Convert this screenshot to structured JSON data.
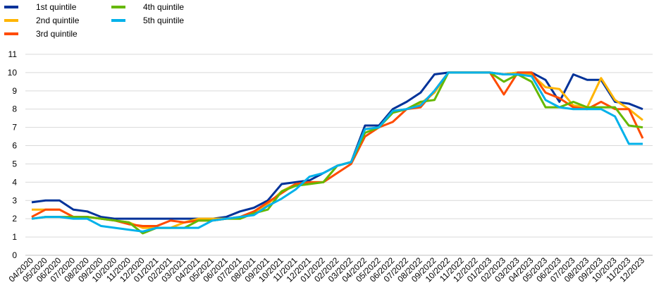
{
  "chart_data": {
    "type": "line",
    "categories": [
      "04/2020",
      "05/2020",
      "06/2020",
      "07/2020",
      "08/2020",
      "09/2020",
      "10/2020",
      "11/2020",
      "12/2020",
      "01/2021",
      "02/2021",
      "03/2021",
      "04/2021",
      "05/2021",
      "06/2021",
      "07/2021",
      "08/2021",
      "09/2021",
      "10/2021",
      "11/2021",
      "12/2021",
      "01/2022",
      "02/2022",
      "03/2022",
      "04/2022",
      "05/2022",
      "06/2022",
      "07/2022",
      "08/2022",
      "09/2022",
      "10/2022",
      "11/2022",
      "12/2022",
      "01/2023",
      "02/2023",
      "03/2023",
      "04/2023",
      "05/2023",
      "06/2023",
      "07/2023",
      "08/2023",
      "09/2023",
      "10/2023",
      "11/2023",
      "12/2023"
    ],
    "series": [
      {
        "name": "1st quintile",
        "color": "#003299",
        "values": [
          2.9,
          3.0,
          3.0,
          2.5,
          2.4,
          2.1,
          2.0,
          2.0,
          2.0,
          2.0,
          2.0,
          2.0,
          2.0,
          2.0,
          2.1,
          2.4,
          2.6,
          3.0,
          3.9,
          4.0,
          4.1,
          4.5,
          4.9,
          5.1,
          7.1,
          7.1,
          8.0,
          8.4,
          8.9,
          9.9,
          10,
          10,
          10,
          10,
          9.9,
          10,
          10,
          9.6,
          8.4,
          9.9,
          9.6,
          9.6,
          8.4,
          8.3,
          8.0
        ]
      },
      {
        "name": "2nd quintile",
        "color": "#ffb400",
        "values": [
          2.5,
          2.5,
          2.5,
          2.1,
          2.1,
          2.0,
          1.9,
          1.8,
          1.5,
          1.5,
          1.5,
          1.8,
          2.0,
          2.0,
          2.0,
          2.0,
          2.3,
          2.8,
          3.5,
          3.9,
          4.0,
          4.0,
          4.9,
          5.1,
          6.9,
          7.0,
          7.9,
          8.0,
          8.3,
          8.9,
          10,
          10,
          10,
          10,
          9.9,
          10,
          9.9,
          9.2,
          9.1,
          8.2,
          8.1,
          9.7,
          8.5,
          8.0,
          7.4
        ]
      },
      {
        "name": "3rd quintile",
        "color": "#ff4b00",
        "values": [
          2.1,
          2.5,
          2.5,
          2.1,
          2.1,
          2.0,
          1.9,
          1.7,
          1.6,
          1.6,
          1.9,
          1.8,
          1.9,
          1.9,
          2.0,
          2.1,
          2.4,
          2.9,
          3.4,
          3.9,
          4.0,
          4.0,
          4.5,
          5.0,
          6.5,
          7.0,
          7.3,
          8.0,
          8.1,
          9.0,
          10,
          10,
          10,
          10,
          8.8,
          10,
          10,
          8.9,
          8.6,
          8.1,
          8.0,
          8.4,
          8.0,
          8.0,
          6.4
        ]
      },
      {
        "name": "4th quintile",
        "color": "#65b800",
        "values": [
          2.0,
          2.1,
          2.1,
          2.1,
          2.1,
          2.0,
          1.9,
          1.8,
          1.2,
          1.5,
          1.5,
          1.5,
          1.9,
          1.9,
          2.0,
          2.0,
          2.3,
          2.5,
          3.5,
          3.8,
          3.9,
          4.0,
          4.9,
          5.1,
          6.7,
          7.0,
          7.8,
          8.0,
          8.4,
          8.5,
          10,
          10,
          10,
          10,
          9.5,
          9.9,
          9.5,
          8.1,
          8.1,
          8.4,
          8.1,
          8.1,
          8.1,
          7.1,
          7.0
        ]
      },
      {
        "name": "5th quintile",
        "color": "#00b1ea",
        "values": [
          2.0,
          2.1,
          2.1,
          2.0,
          2.0,
          1.6,
          1.5,
          1.4,
          1.3,
          1.5,
          1.5,
          1.5,
          1.5,
          1.9,
          2.0,
          2.1,
          2.2,
          2.7,
          3.1,
          3.6,
          4.3,
          4.5,
          4.9,
          5.1,
          6.9,
          7.0,
          7.9,
          8.0,
          8.2,
          9.0,
          10,
          10,
          10,
          10,
          9.9,
          9.9,
          9.8,
          8.5,
          8.1,
          8.0,
          8.0,
          8.0,
          7.6,
          6.1,
          6.1
        ]
      }
    ],
    "ylim": [
      0,
      11
    ],
    "yticks": [
      0,
      1,
      2,
      3,
      4,
      5,
      6,
      7,
      8,
      9,
      10,
      11
    ],
    "grid": true,
    "legend": "top-left"
  }
}
